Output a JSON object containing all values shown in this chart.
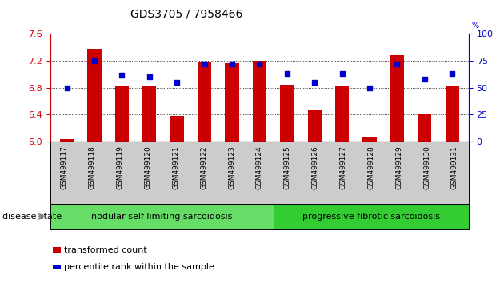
{
  "title": "GDS3705 / 7958466",
  "samples": [
    "GSM499117",
    "GSM499118",
    "GSM499119",
    "GSM499120",
    "GSM499121",
    "GSM499122",
    "GSM499123",
    "GSM499124",
    "GSM499125",
    "GSM499126",
    "GSM499127",
    "GSM499128",
    "GSM499129",
    "GSM499130",
    "GSM499131"
  ],
  "red_values": [
    6.03,
    7.38,
    6.82,
    6.82,
    6.38,
    7.18,
    7.16,
    7.2,
    6.85,
    6.47,
    6.82,
    6.07,
    7.28,
    6.41,
    6.83
  ],
  "blue_values": [
    50,
    75,
    62,
    60,
    55,
    72,
    72,
    72,
    63,
    55,
    63,
    50,
    72,
    58,
    63
  ],
  "group1_label": "nodular self-limiting sarcoidosis",
  "group1_samples": 8,
  "group2_label": "progressive fibrotic sarcoidosis",
  "group2_samples": 7,
  "disease_state_label": "disease state",
  "legend_red": "transformed count",
  "legend_blue": "percentile rank within the sample",
  "ylim_left": [
    6.0,
    7.6
  ],
  "ylim_right": [
    0,
    100
  ],
  "yticks_left": [
    6.0,
    6.4,
    6.8,
    7.2,
    7.6
  ],
  "yticks_right": [
    0,
    25,
    50,
    75,
    100
  ],
  "red_color": "#cc0000",
  "blue_color": "#0000cc",
  "group1_color": "#66dd66",
  "group2_color": "#33cc33",
  "bar_width": 0.5,
  "bg_color": "#ffffff",
  "ticklabel_bg": "#cccccc"
}
